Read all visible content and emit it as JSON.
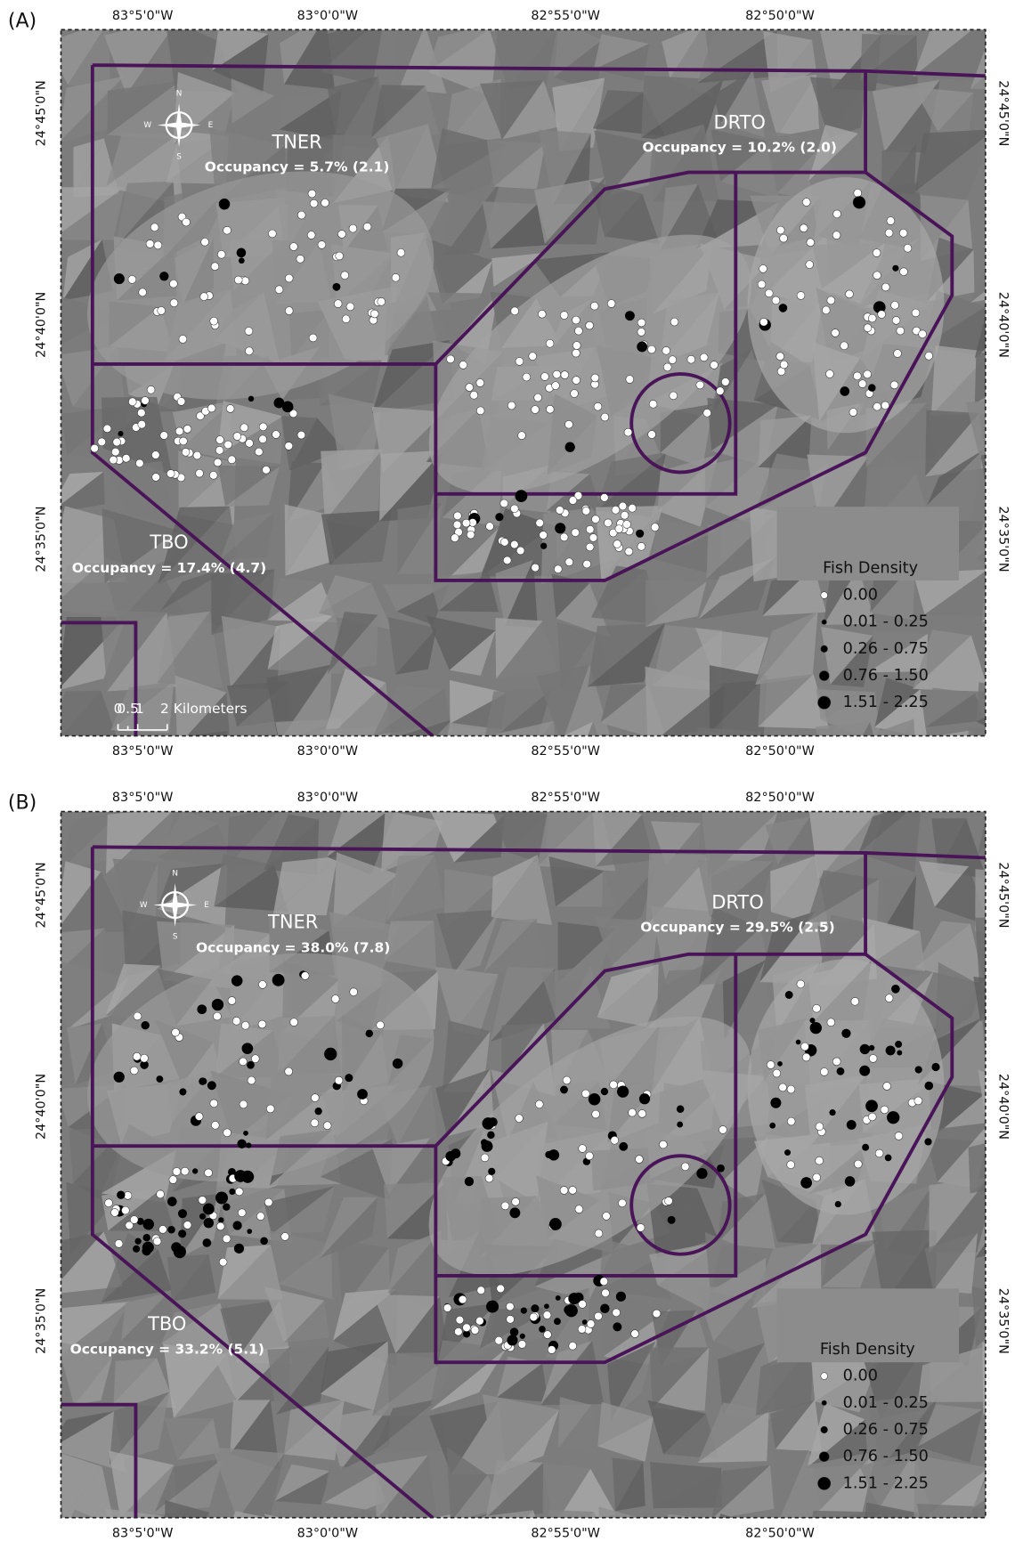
{
  "panels": [
    {
      "label": "(A)",
      "top_axis": [
        "83°5'0\"W",
        "83°0'0\"W",
        "82°55'0\"W",
        "82°50'0\"W"
      ],
      "bottom_axis": [
        "83°5'0\"W",
        "83°0'0\"W",
        "82°55'0\"W",
        "82°50'0\"W"
      ],
      "left_axis": [
        "24°45'0\"N",
        "24°40'0\"N",
        "24°35'0\"N"
      ],
      "right_axis": [
        "24°45'0\"N",
        "24°40'0\"N",
        "24°35'0\"N"
      ],
      "regions": [
        {
          "name": "TNER",
          "occupancy": "Occupancy = 5.7% (2.1)"
        },
        {
          "name": "DRTO",
          "occupancy": "Occupancy = 10.2% (2.0)"
        },
        {
          "name": "TBO",
          "occupancy": "Occupancy = 17.4% (4.7)"
        }
      ],
      "compass": [
        "N",
        "S",
        "E",
        "W"
      ],
      "legend": {
        "title": "Fish Density",
        "items": [
          "0.00",
          "0.01 -   0.25",
          "0.26 -   0.75",
          "0.76 -   1.50",
          "1.51 -   2.25"
        ]
      },
      "scale_bar": {
        "ticks": [
          "0",
          "0.5",
          "1"
        ],
        "label": "2 Kilometers"
      }
    },
    {
      "label": "(B)",
      "top_axis": [
        "83°5'0\"W",
        "83°0'0\"W",
        "82°55'0\"W",
        "82°50'0\"W"
      ],
      "bottom_axis": [
        "83°5'0\"W",
        "83°0'0\"W",
        "82°55'0\"W",
        "82°50'0\"W"
      ],
      "left_axis": [
        "24°45'0\"N",
        "24°40'0\"N",
        "24°35'0\"N"
      ],
      "right_axis": [
        "24°45'0\"N",
        "24°40'0\"N",
        "24°35'0\"N"
      ],
      "regions": [
        {
          "name": "TNER",
          "occupancy": "Occupancy = 38.0% (7.8)"
        },
        {
          "name": "DRTO",
          "occupancy": "Occupancy = 29.5% (2.5)"
        },
        {
          "name": "TBO",
          "occupancy": "Occupancy = 33.2% (5.1)"
        }
      ],
      "compass": [
        "N",
        "S",
        "E",
        "W"
      ],
      "legend": {
        "title": "Fish Density",
        "items": [
          "0.00",
          "0.01 -   0.25",
          "0.26 -   0.75",
          "0.76 -   1.50",
          "1.51 -   2.25"
        ]
      }
    }
  ]
}
